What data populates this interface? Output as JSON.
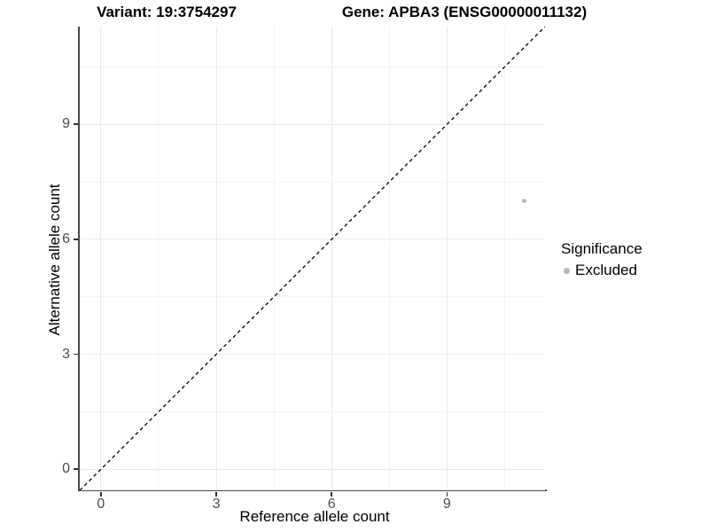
{
  "titles": {
    "left": "Variant: 19:3754297",
    "right": "Gene: APBA3 (ENSG00000011132)"
  },
  "axes": {
    "x": {
      "title": "Reference allele count",
      "tick_labels": [
        "0",
        "3",
        "6",
        "9"
      ]
    },
    "y": {
      "title": "Alternative allele count",
      "tick_labels": [
        "0",
        "3",
        "6",
        "9"
      ]
    }
  },
  "legend": {
    "title": "Significance",
    "items": [
      {
        "label": "Excluded",
        "color": "#b9b9b9"
      }
    ]
  },
  "colors": {
    "point": "#b9b9b9",
    "axis_line": "#4a4a4a",
    "tick_mark": "#333333",
    "tick_label": "#4d4d4d",
    "grid_major": "#e9e9e9",
    "grid_minor": "#f4f4f4",
    "identity_line": "#000000",
    "background": "#ffffff"
  },
  "chart_data": {
    "type": "scatter",
    "title_left": "Variant: 19:3754297",
    "title_right": "Gene: APBA3 (ENSG00000011132)",
    "xlabel": "Reference allele count",
    "ylabel": "Alternative allele count",
    "xlim": [
      -0.55,
      11.55
    ],
    "ylim": [
      -0.55,
      11.55
    ],
    "x_ticks": [
      0,
      3,
      6,
      9
    ],
    "y_ticks": [
      0,
      3,
      6,
      9
    ],
    "grid": true,
    "legend": {
      "title": "Significance",
      "position": "right"
    },
    "reference_line": {
      "kind": "identity",
      "style": "dashed",
      "color": "#000000"
    },
    "series": [
      {
        "name": "Excluded",
        "color": "#b9b9b9",
        "points": [
          {
            "x": 11,
            "y": 7
          }
        ]
      }
    ]
  }
}
